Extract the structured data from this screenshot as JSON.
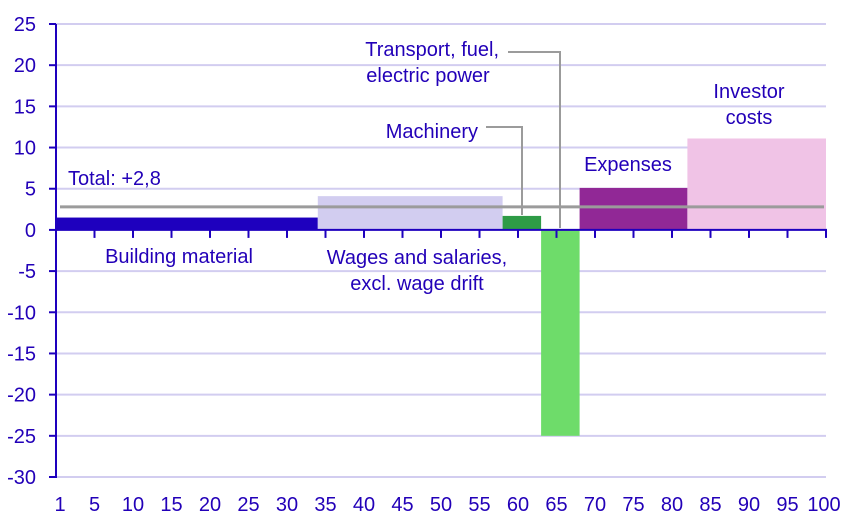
{
  "chart_data": {
    "type": "bar",
    "subtype": "variable-width (marimekko-style) bar chart",
    "title": "",
    "xlabel": "",
    "ylabel": "",
    "xlim": [
      0,
      100
    ],
    "ylim": [
      -30,
      25
    ],
    "x_ticks": [
      1,
      5,
      10,
      15,
      20,
      25,
      30,
      35,
      40,
      45,
      50,
      55,
      60,
      65,
      70,
      75,
      80,
      85,
      90,
      95,
      100
    ],
    "y_ticks": [
      25,
      20,
      15,
      10,
      5,
      0,
      -5,
      -10,
      -15,
      -20,
      -25,
      -30
    ],
    "grid": true,
    "legend": "none (direct labels)",
    "categories": [
      "Building material",
      "Wages and salaries, excl. wage drift",
      "Machinery",
      "Transport, fuel, electric power",
      "Expenses",
      "Investor costs"
    ],
    "bars": [
      {
        "name": "Building material",
        "x_start": 0,
        "x_end": 34,
        "value": 1.5,
        "color": "#1e00be"
      },
      {
        "name": "Wages and salaries, excl. wage drift",
        "x_start": 34,
        "x_end": 58,
        "value": 4.1,
        "color": "#d2cdf0"
      },
      {
        "name": "Machinery",
        "x_start": 58,
        "x_end": 63,
        "value": 1.7,
        "color": "#2e9b46"
      },
      {
        "name": "Transport, fuel, electric power",
        "x_start": 63,
        "x_end": 68,
        "value": -25.0,
        "color": "#6edc6a"
      },
      {
        "name": "Expenses",
        "x_start": 68,
        "x_end": 82,
        "value": 5.1,
        "color": "#912896"
      },
      {
        "name": "Investor costs",
        "x_start": 82,
        "x_end": 100,
        "value": 11.1,
        "color": "#f0c3e6"
      }
    ],
    "reference_line": {
      "label": "Total: +2,8",
      "value": 2.8,
      "color": "#9b9b9b"
    },
    "annotations": [
      {
        "text": "Total: +2,8"
      },
      {
        "text": "Building material"
      },
      {
        "text": "Wages and salaries,\nexcl. wage drift"
      },
      {
        "text": "Machinery",
        "leader_to": "Machinery bar"
      },
      {
        "text": "Transport, fuel,\nelectric power",
        "leader_to": "Transport bar"
      },
      {
        "text": "Expenses"
      },
      {
        "text": "Investor\ncosts"
      }
    ]
  },
  "labels": {
    "total": "Total: +2,8",
    "building": "Building material",
    "wages_1": "Wages and salaries,",
    "wages_2": "excl. wage drift",
    "machinery": "Machinery",
    "transport_1": "Transport, fuel,",
    "transport_2": "electric power",
    "expenses": "Expenses",
    "investor_1": "Investor",
    "investor_2": "costs"
  },
  "colors": {
    "axis": "#1e00be",
    "text": "#2200b8",
    "grid": "#d2cdf0",
    "total_line": "#9b9b9b"
  }
}
